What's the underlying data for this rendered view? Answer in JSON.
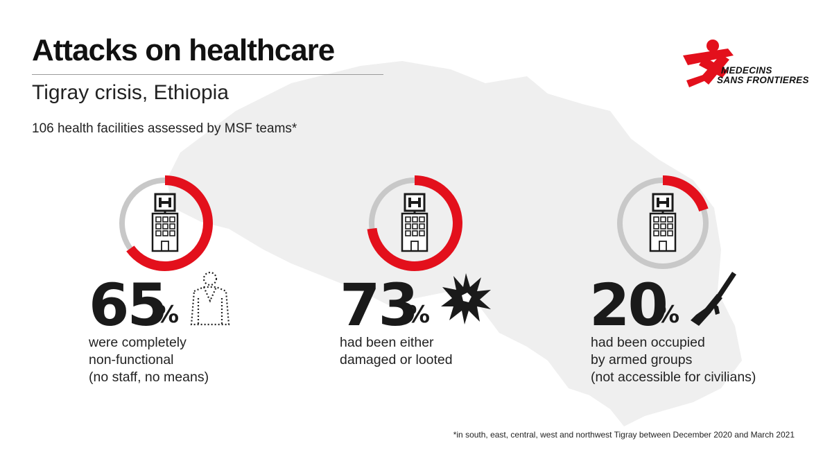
{
  "header": {
    "title": "Attacks on healthcare",
    "subtitle": "Tigray crisis, Ethiopia",
    "description": "106 health facilities assessed by MSF teams*"
  },
  "logo": {
    "name": "msf-logo",
    "line1": "MEDECINS",
    "line2": "SANS FRONTIERES"
  },
  "colors": {
    "accent": "#e3101c",
    "track": "#c8c8c8",
    "map": "#efefef"
  },
  "chart_data": {
    "type": "pie",
    "total": "106 health facilities assessed by MSF teams*",
    "stats": [
      {
        "value": 65,
        "unit": "%",
        "icon": "person-outline-icon",
        "caption": [
          "were completely",
          "non-functional",
          "(no staff, no means)"
        ]
      },
      {
        "value": 73,
        "unit": "%",
        "icon": "explosion-icon",
        "caption": [
          "had been either",
          "damaged or looted"
        ]
      },
      {
        "value": 20,
        "unit": "%",
        "icon": "rifle-icon",
        "caption": [
          "had been occupied",
          "by armed groups",
          "(not accessible for civilians)"
        ]
      }
    ]
  },
  "footnote": "*in south, east, central, west and northwest Tigray between December 2020 and March 2021"
}
